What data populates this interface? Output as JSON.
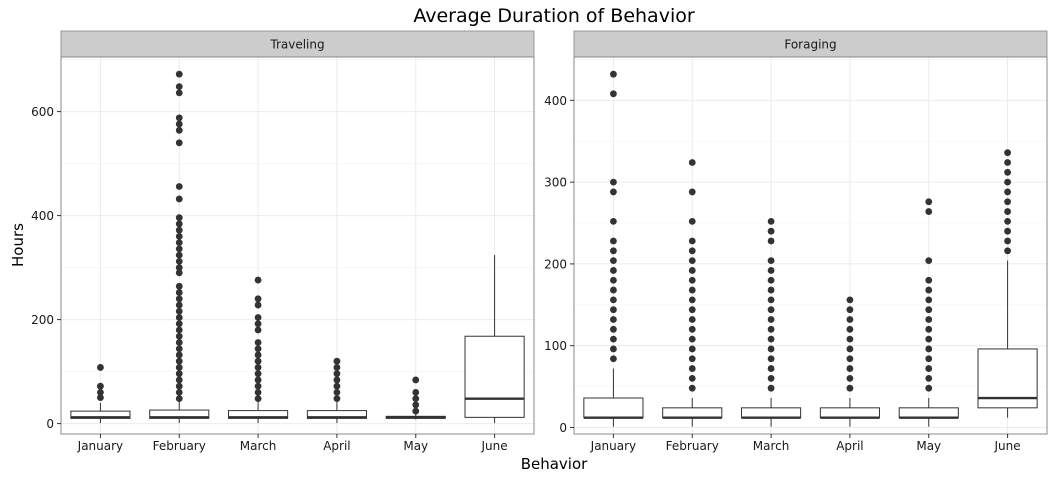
{
  "title": "Average Duration of Behavior",
  "xlabel": "Behavior",
  "ylabel": "Hours",
  "colors": {
    "strip_bg": "#cccccc",
    "panel_border": "#888888",
    "grid_major": "#ebebeb",
    "grid_minor": "#f5f5f5",
    "box_stroke": "#333333",
    "outlier": "#333333"
  },
  "chart_data": [
    {
      "type": "boxplot",
      "panel": "Traveling",
      "categories": [
        "January",
        "February",
        "March",
        "April",
        "May",
        "June"
      ],
      "yticks": [
        0,
        200,
        400,
        600
      ],
      "ylim": [
        -20,
        705
      ],
      "grid": true,
      "boxes": [
        {
          "category": "January",
          "q1": 10,
          "median": 12,
          "q3": 24,
          "whisker_low": 1,
          "whisker_high": 40,
          "outliers": [
            50,
            60,
            72,
            108
          ]
        },
        {
          "category": "February",
          "q1": 10,
          "median": 12,
          "q3": 26,
          "whisker_low": 1,
          "whisker_high": 44,
          "outliers": [
            48,
            60,
            72,
            84,
            96,
            108,
            120,
            132,
            144,
            156,
            168,
            180,
            192,
            204,
            216,
            228,
            240,
            252,
            264,
            290,
            300,
            312,
            324,
            336,
            348,
            360,
            372,
            384,
            396,
            432,
            456,
            540,
            564,
            576,
            588,
            636,
            648,
            672
          ]
        },
        {
          "category": "March",
          "q1": 10,
          "median": 12,
          "q3": 25,
          "whisker_low": 1,
          "whisker_high": 45,
          "outliers": [
            48,
            60,
            72,
            84,
            96,
            108,
            120,
            132,
            144,
            156,
            180,
            192,
            204,
            228,
            240,
            276
          ]
        },
        {
          "category": "April",
          "q1": 10,
          "median": 12,
          "q3": 25,
          "whisker_low": 1,
          "whisker_high": 45,
          "outliers": [
            48,
            60,
            72,
            84,
            96,
            108,
            120
          ]
        },
        {
          "category": "May",
          "q1": 10,
          "median": 12,
          "q3": 14,
          "whisker_low": 8,
          "whisker_high": 18,
          "outliers": [
            24,
            36,
            48,
            60,
            84
          ]
        },
        {
          "category": "June",
          "q1": 12,
          "median": 48,
          "q3": 168,
          "whisker_low": 1,
          "whisker_high": 324,
          "outliers": []
        }
      ]
    },
    {
      "type": "boxplot",
      "panel": "Foraging",
      "categories": [
        "January",
        "February",
        "March",
        "April",
        "May",
        "June"
      ],
      "yticks": [
        0,
        100,
        200,
        300,
        400
      ],
      "ylim": [
        -8,
        453
      ],
      "grid": true,
      "boxes": [
        {
          "category": "January",
          "q1": 12,
          "median": 12,
          "q3": 36,
          "whisker_low": 1,
          "whisker_high": 72,
          "outliers": [
            84,
            96,
            108,
            120,
            132,
            144,
            156,
            168,
            180,
            192,
            204,
            216,
            228,
            252,
            288,
            300,
            408,
            432
          ]
        },
        {
          "category": "February",
          "q1": 12,
          "median": 12,
          "q3": 24,
          "whisker_low": 1,
          "whisker_high": 36,
          "outliers": [
            48,
            60,
            72,
            84,
            96,
            108,
            120,
            132,
            144,
            156,
            168,
            180,
            192,
            204,
            216,
            228,
            252,
            288,
            324
          ]
        },
        {
          "category": "March",
          "q1": 12,
          "median": 12,
          "q3": 24,
          "whisker_low": 1,
          "whisker_high": 36,
          "outliers": [
            48,
            60,
            72,
            84,
            96,
            108,
            120,
            132,
            144,
            156,
            168,
            180,
            192,
            204,
            228,
            240,
            252
          ]
        },
        {
          "category": "April",
          "q1": 12,
          "median": 12,
          "q3": 24,
          "whisker_low": 1,
          "whisker_high": 36,
          "outliers": [
            48,
            60,
            72,
            84,
            96,
            108,
            120,
            132,
            144,
            156
          ]
        },
        {
          "category": "May",
          "q1": 12,
          "median": 12,
          "q3": 24,
          "whisker_low": 1,
          "whisker_high": 36,
          "outliers": [
            48,
            60,
            72,
            84,
            96,
            108,
            120,
            132,
            144,
            156,
            168,
            180,
            204,
            264,
            276
          ]
        },
        {
          "category": "June",
          "q1": 24,
          "median": 36,
          "q3": 96,
          "whisker_low": 12,
          "whisker_high": 204,
          "outliers": [
            216,
            228,
            240,
            252,
            264,
            276,
            288,
            300,
            312,
            324,
            336
          ]
        }
      ]
    }
  ]
}
